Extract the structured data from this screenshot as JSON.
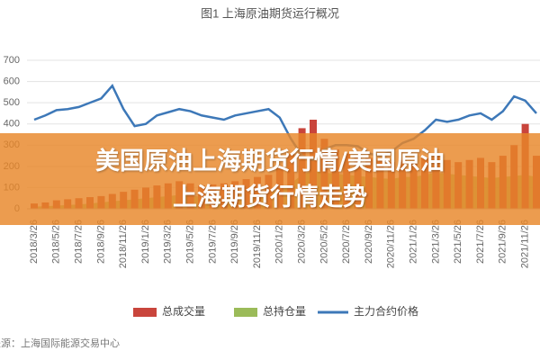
{
  "chart_data": {
    "type": "combo",
    "title": "图1 上海原油期货运行概况",
    "source": "来源：上海国际能源交易中心",
    "categories": [
      "2018/3/26",
      null,
      "2018/5/26",
      null,
      "2018/7/26",
      null,
      "2018/9/26",
      null,
      "2018/11/26",
      null,
      "2019/1/26",
      null,
      "2019/3/26",
      null,
      "2019/5/26",
      null,
      "2019/7/26",
      null,
      "2019/9/26",
      null,
      "2019/11/26",
      null,
      "2020/1/26",
      null,
      "2020/3/26",
      null,
      "2020/5/26",
      null,
      "2020/7/26",
      null,
      "2020/9/26",
      null,
      "2020/11/26",
      null,
      "2021/1/26",
      null,
      "2021/3/26",
      null,
      "2021/5/26",
      null,
      "2021/7/26",
      null,
      "2021/9/26",
      null,
      "2021/11/26",
      null
    ],
    "series": [
      {
        "name": "总成交量",
        "type": "bar",
        "color": "#c9453c",
        "values": [
          25,
          30,
          40,
          45,
          50,
          55,
          60,
          70,
          80,
          90,
          100,
          110,
          120,
          130,
          120,
          110,
          115,
          120,
          130,
          140,
          150,
          160,
          200,
          260,
          380,
          420,
          330,
          280,
          260,
          250,
          240,
          230,
          220,
          230,
          220,
          240,
          250,
          230,
          220,
          230,
          240,
          220,
          250,
          300,
          400,
          250
        ]
      },
      {
        "name": "总持仓量",
        "type": "area",
        "color": "#9bbb59",
        "values": [
          10,
          12,
          15,
          18,
          20,
          25,
          30,
          35,
          40,
          45,
          50,
          55,
          60,
          65,
          60,
          58,
          60,
          62,
          65,
          68,
          70,
          75,
          90,
          120,
          160,
          180,
          170,
          165,
          160,
          155,
          150,
          145,
          140,
          150,
          150,
          160,
          170,
          165,
          160,
          155,
          150,
          145,
          150,
          155,
          160,
          150
        ]
      },
      {
        "name": "主力合约价格",
        "type": "line",
        "color": "#3d78b8",
        "values": [
          420,
          440,
          465,
          470,
          480,
          500,
          520,
          580,
          470,
          390,
          400,
          440,
          455,
          470,
          460,
          440,
          430,
          420,
          440,
          450,
          460,
          470,
          430,
          330,
          250,
          230,
          280,
          300,
          300,
          295,
          260,
          250,
          270,
          310,
          330,
          370,
          420,
          410,
          420,
          440,
          450,
          420,
          460,
          530,
          510,
          450
        ]
      }
    ],
    "ylim": [
      0,
      700
    ],
    "yticks": [
      0,
      100,
      200,
      300,
      400,
      500,
      600,
      700
    ],
    "grid": true
  },
  "overlay": {
    "lines": [
      "美国原油上海期货行情/美国原油",
      "上海期货行情走势"
    ]
  }
}
